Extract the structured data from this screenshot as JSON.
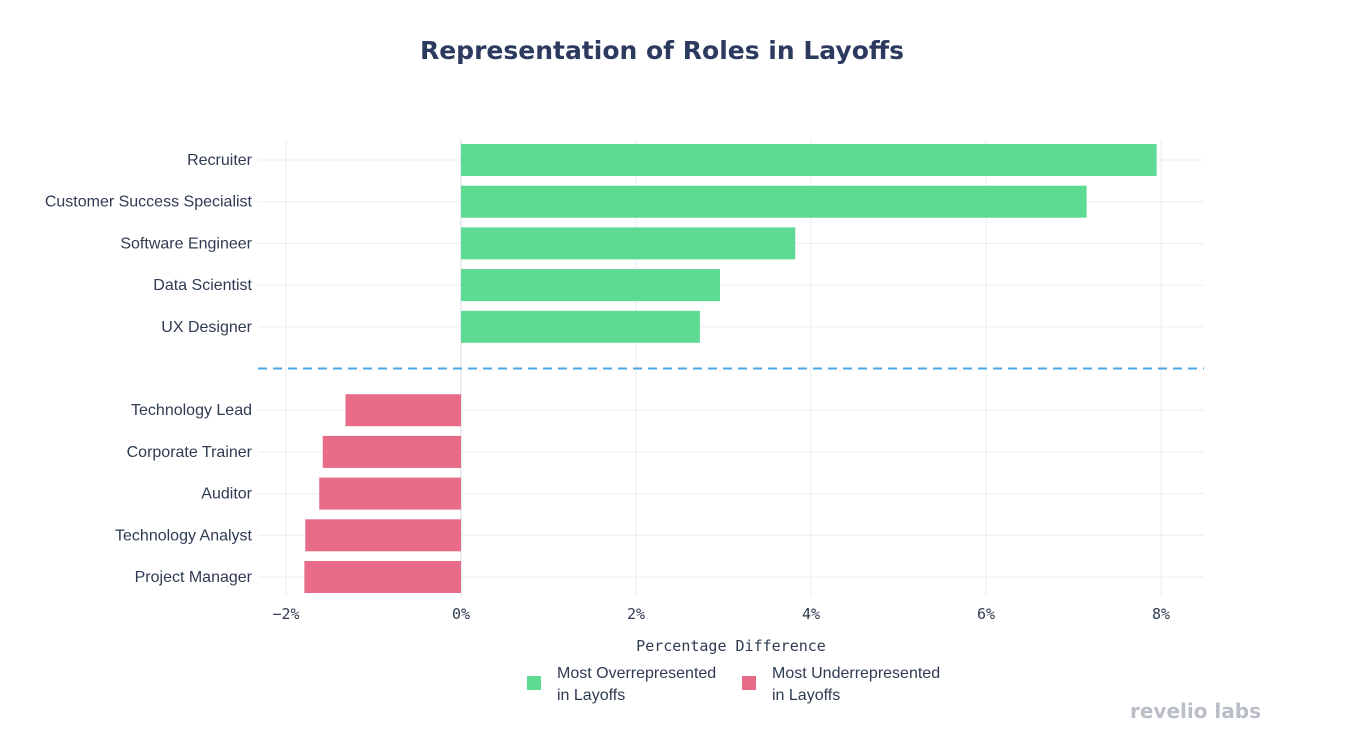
{
  "chart_data": {
    "type": "bar",
    "orientation": "horizontal",
    "title": "Representation of Roles in Layoffs",
    "xlabel": "Percentage Difference",
    "ylabel": "",
    "xlim": [
      -2.5,
      8.5
    ],
    "xticks": [
      -2,
      0,
      2,
      4,
      6,
      8
    ],
    "xtick_labels": [
      "−2%",
      "0%",
      "2%",
      "4%",
      "6%",
      "8%"
    ],
    "grid": true,
    "legend_position": "bottom",
    "separator": "dashed line between the two groups",
    "series": [
      {
        "name": "Most Overrepresented in Layoffs",
        "legend_lines": [
          "Most Overrepresented",
          "in Layoffs"
        ],
        "color": "#5ddb93",
        "categories": [
          "Recruiter",
          "Customer Success Specialist",
          "Software Engineer",
          "Data Scientist",
          "UX Designer"
        ],
        "values": [
          7.95,
          7.15,
          3.82,
          2.96,
          2.73
        ]
      },
      {
        "name": "Most Underrepresented in Layoffs",
        "legend_lines": [
          "Most Underrepresented",
          "in Layoffs"
        ],
        "color": "#e86c87",
        "categories": [
          "Technology Lead",
          "Corporate Trainer",
          "Auditor",
          "Technology Analyst",
          "Project Manager"
        ],
        "values": [
          -1.32,
          -1.58,
          -1.62,
          -1.78,
          -1.79
        ]
      }
    ],
    "separator_color": "#4aa8e6"
  },
  "branding": {
    "logo_text": "revelio labs"
  }
}
